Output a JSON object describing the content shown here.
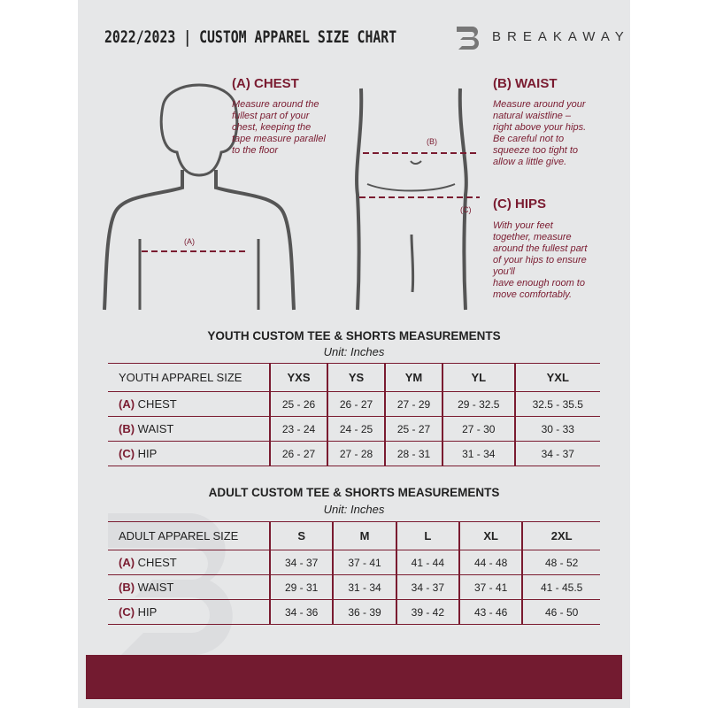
{
  "header": {
    "title": "2022/2023  |  CUSTOM APPAREL SIZE CHART",
    "brand": "BREAKAWAY",
    "logo_letter": "B"
  },
  "measures": {
    "chest": {
      "title": "(A) CHEST",
      "text": "Measure around the\nfullest part of your\nchest, keeping the\ntape measure parallel\nto the floor",
      "marker": "(A)"
    },
    "waist": {
      "title": "(B) WAIST",
      "text": "Measure around your\nnatural waistline –\nright above your hips.\nBe careful not to\nsqueeze too tight to\nallow a little give.",
      "marker": "(B)"
    },
    "hips": {
      "title": "(C) HIPS",
      "text": "With your feet\ntogether, measure\naround the fullest part\nof your hips to ensure\nyou'll\nhave enough room to\nmove comfortably.",
      "marker": "(C)"
    }
  },
  "youth": {
    "title": "YOUTH CUSTOM TEE & SHORTS MEASUREMENTS",
    "unit": "Unit: Inches",
    "header": [
      "YOUTH APPAREL SIZE",
      "YXS",
      "YS",
      "YM",
      "YL",
      "YXL"
    ],
    "rows": [
      {
        "letter": "(A)",
        "label": "CHEST",
        "values": [
          "25 - 26",
          "26 - 27",
          "27 - 29",
          "29 - 32.5",
          "32.5 - 35.5"
        ]
      },
      {
        "letter": "(B)",
        "label": "WAIST",
        "values": [
          "23 - 24",
          "24 - 25",
          "25 - 27",
          "27 - 30",
          "30 - 33"
        ]
      },
      {
        "letter": "(C)",
        "label": "HIP",
        "values": [
          "26 - 27",
          "27 - 28",
          "28 - 31",
          "31 - 34",
          "34 - 37"
        ]
      }
    ]
  },
  "adult": {
    "title": "ADULT CUSTOM TEE & SHORTS MEASUREMENTS",
    "unit": "Unit: Inches",
    "header": [
      "ADULT APPAREL SIZE",
      "S",
      "M",
      "L",
      "XL",
      "2XL"
    ],
    "rows": [
      {
        "letter": "(A)",
        "label": "CHEST",
        "values": [
          "34 - 37",
          "37 - 41",
          "41 - 44",
          "44 - 48",
          "48 - 52"
        ]
      },
      {
        "letter": "(B)",
        "label": "WAIST",
        "values": [
          "29 - 31",
          "31 - 34",
          "34 - 37",
          "37 - 41",
          "41 - 45.5"
        ]
      },
      {
        "letter": "(C)",
        "label": "HIP",
        "values": [
          "34 - 36",
          "36 - 39",
          "39 - 42",
          "43 - 46",
          "46 - 50"
        ]
      }
    ]
  },
  "colors": {
    "accent": "#731b30",
    "background": "#e6e7e8"
  }
}
